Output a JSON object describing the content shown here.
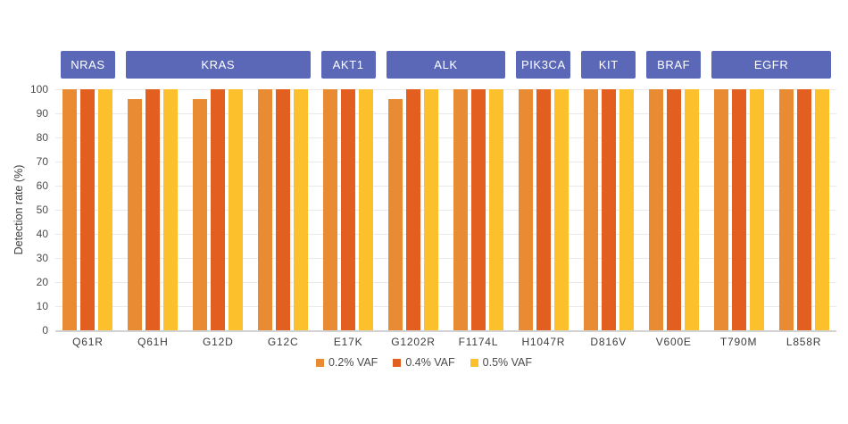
{
  "colors": {
    "gene_box_bg": "#5b68b8",
    "gene_box_text": "#ffffff",
    "gridline": "#e9e9e9",
    "axis_line": "#d2d2d2",
    "tick_text": "#4c4c4c",
    "label_text": "#3c3c3c"
  },
  "chart_data": {
    "type": "bar",
    "title": "",
    "xlabel": "",
    "ylabel": "Detection rate (%)",
    "ylim": [
      0,
      100
    ],
    "yticks": [
      0,
      10,
      20,
      30,
      40,
      50,
      60,
      70,
      80,
      90,
      100
    ],
    "grid": true,
    "legend_position": "bottom",
    "categories": [
      "Q61R",
      "Q61H",
      "G12D",
      "G12C",
      "E17K",
      "G1202R",
      "F1174L",
      "H1047R",
      "D816V",
      "V600E",
      "T790M",
      "L858R"
    ],
    "gene_groups": [
      {
        "gene": "NRAS",
        "mutations": [
          "Q61R"
        ]
      },
      {
        "gene": "KRAS",
        "mutations": [
          "Q61H",
          "G12D",
          "G12C"
        ]
      },
      {
        "gene": "AKT1",
        "mutations": [
          "E17K"
        ]
      },
      {
        "gene": "ALK",
        "mutations": [
          "G1202R",
          "F1174L"
        ]
      },
      {
        "gene": "PIK3CA",
        "mutations": [
          "H1047R"
        ]
      },
      {
        "gene": "KIT",
        "mutations": [
          "D816V"
        ]
      },
      {
        "gene": "BRAF",
        "mutations": [
          "V600E"
        ]
      },
      {
        "gene": "EGFR",
        "mutations": [
          "T790M",
          "L858R"
        ]
      }
    ],
    "series": [
      {
        "name": "0.2% VAF",
        "color": "#e98b32",
        "values": [
          100,
          96,
          96,
          100,
          100,
          96,
          100,
          100,
          100,
          100,
          100,
          100
        ]
      },
      {
        "name": "0.4% VAF",
        "color": "#e25f1f",
        "values": [
          100,
          100,
          100,
          100,
          100,
          100,
          100,
          100,
          100,
          100,
          100,
          100
        ]
      },
      {
        "name": "0.5% VAF",
        "color": "#fcc02d",
        "values": [
          100,
          100,
          100,
          100,
          100,
          100,
          100,
          100,
          100,
          100,
          100,
          100
        ]
      }
    ]
  }
}
